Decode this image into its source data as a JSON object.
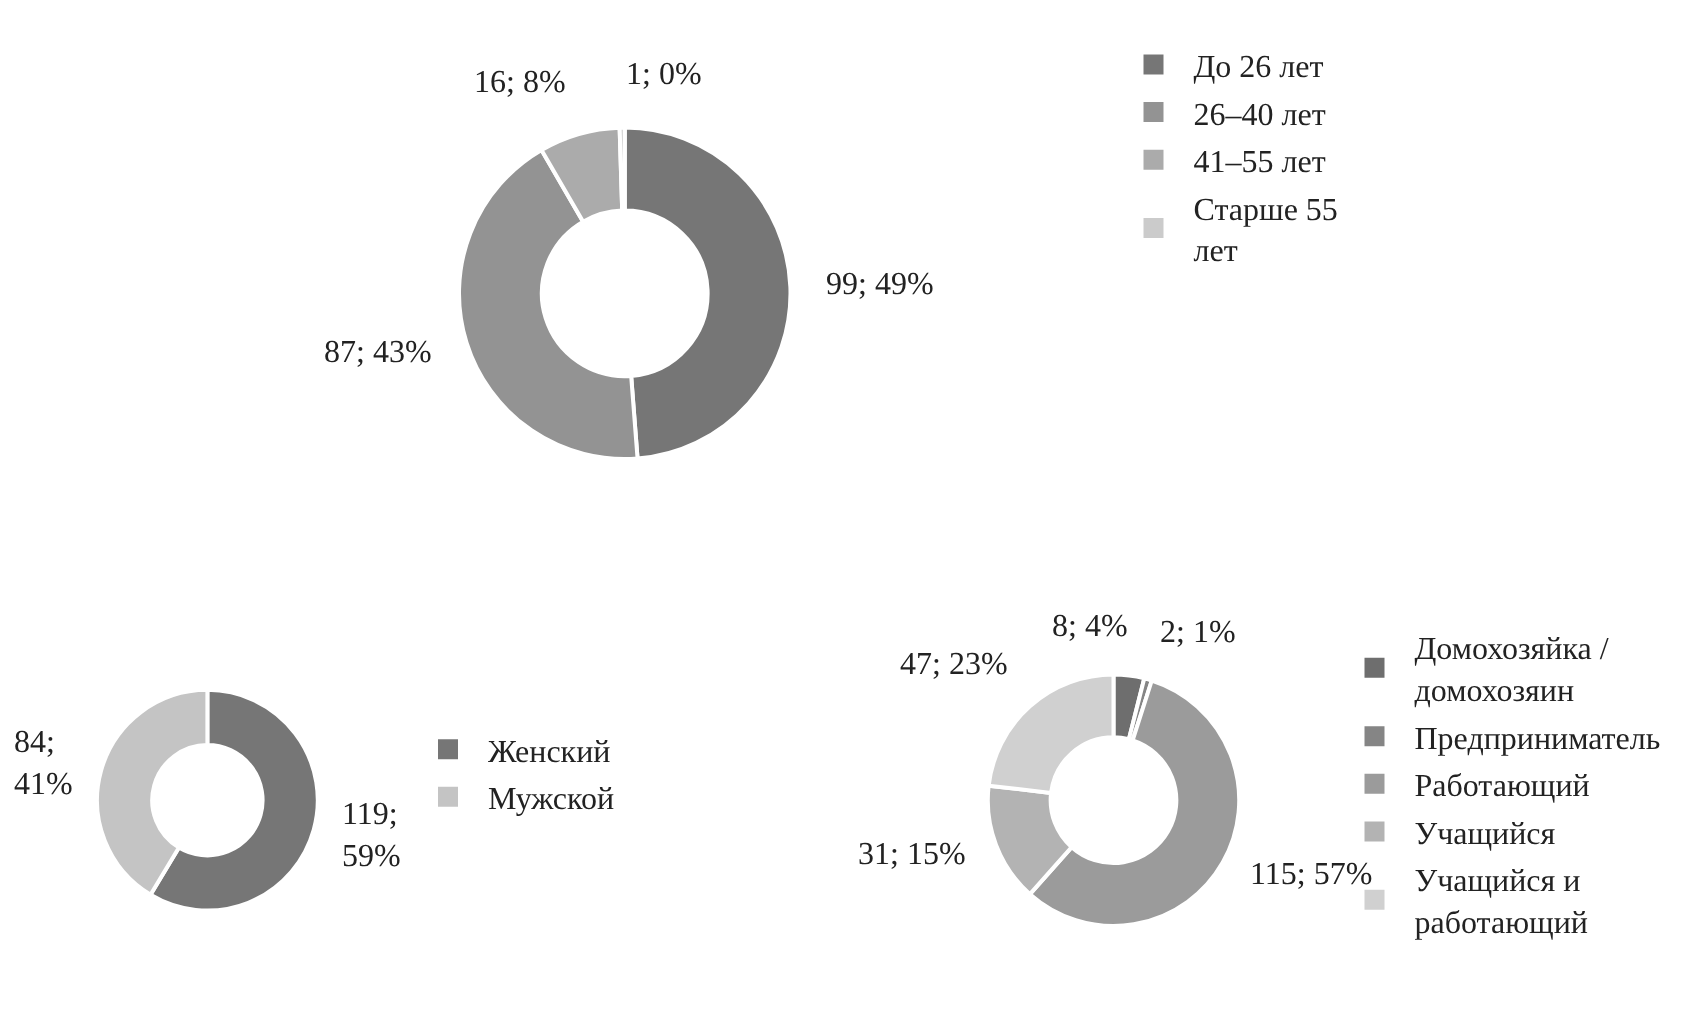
{
  "chart_data": [
    {
      "type": "donut",
      "categories": [
        "До 26 лет",
        "26–40 лет",
        "41–55 лет",
        "Старше 55 лет"
      ],
      "values": [
        99,
        87,
        16,
        1
      ],
      "value_labels": [
        "99; 49%",
        "87; 43%",
        "16; 8%",
        "1; 0%"
      ],
      "colors": [
        "#767676",
        "#939393",
        "#ababab",
        "#cbcbcb"
      ],
      "legend": "right"
    },
    {
      "type": "donut",
      "categories": [
        "Женский",
        "Мужской"
      ],
      "values": [
        119,
        84
      ],
      "value_labels": [
        "119; 59%",
        "84; 41%"
      ],
      "colors": [
        "#767676",
        "#c4c4c4"
      ],
      "legend": "right"
    },
    {
      "type": "donut",
      "categories": [
        "Домохозяйка / домохозяин",
        "Предприниматель",
        "Работающий",
        "Учащийся",
        "Учащийся и работающий"
      ],
      "values": [
        8,
        2,
        115,
        31,
        47
      ],
      "value_labels": [
        "8; 4%",
        "2; 1%",
        "115; 57%",
        "31; 15%",
        "47; 23%"
      ],
      "colors": [
        "#6e6e6e",
        "#858585",
        "#9b9b9b",
        "#b3b3b3",
        "#d0d0d0"
      ],
      "legend": "right"
    }
  ]
}
